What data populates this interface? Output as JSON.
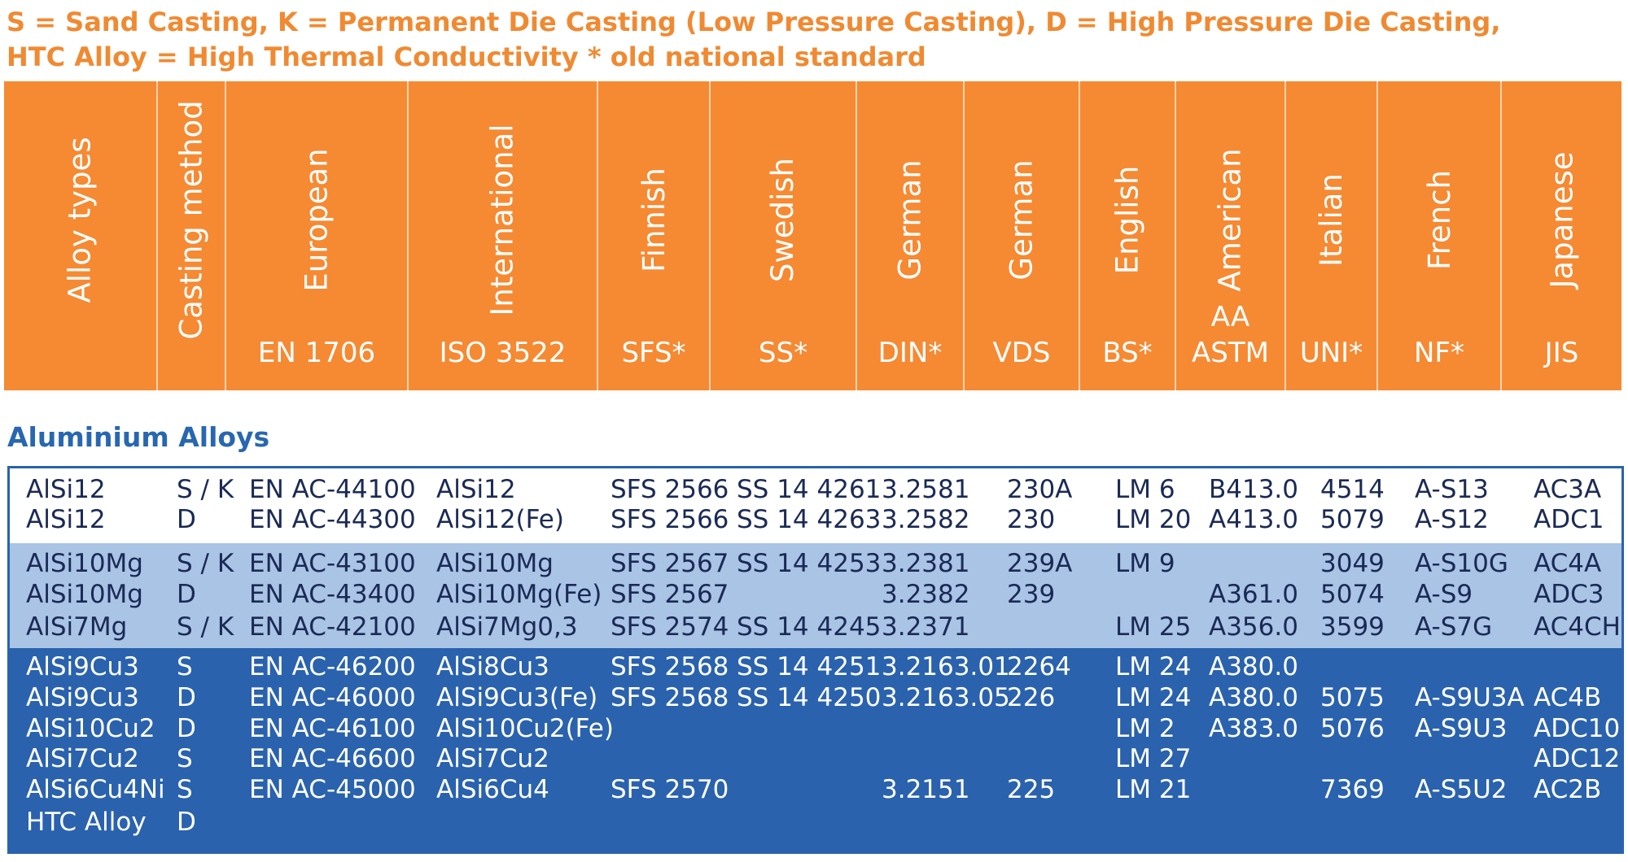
{
  "legend": {
    "line1": "S = Sand Casting, K = Permanent Die Casting (Low Pressure Casting), D = High Pressure Die Casting,",
    "line2": "HTC Alloy = High Thermal Conductivity  * old national standard"
  },
  "columns": [
    {
      "label": "Alloy types",
      "std1": "",
      "std2": ""
    },
    {
      "label": "Casting method",
      "std1": "",
      "std2": ""
    },
    {
      "label": "European",
      "std1": "",
      "std2": "EN 1706"
    },
    {
      "label": "International",
      "std1": "",
      "std2": "ISO 3522"
    },
    {
      "label": "Finnish",
      "std1": "",
      "std2": "SFS*"
    },
    {
      "label": "Swedish",
      "std1": "",
      "std2": "SS*"
    },
    {
      "label": "German",
      "std1": "",
      "std2": "DIN*"
    },
    {
      "label": "German",
      "std1": "",
      "std2": "VDS"
    },
    {
      "label": "English",
      "std1": "",
      "std2": "BS*"
    },
    {
      "label": "American",
      "std1": "AA",
      "std2": "ASTM"
    },
    {
      "label": "Italian",
      "std1": "",
      "std2": "UNI*"
    },
    {
      "label": "French",
      "std1": "",
      "std2": "NF*"
    },
    {
      "label": "Japanese",
      "std1": "",
      "std2": "JIS"
    }
  ],
  "section_title": "Aluminium Alloys",
  "groups": [
    {
      "rows": [
        [
          "AlSi12",
          "S / K",
          "EN AC-44100",
          "AlSi12",
          "SFS 2566",
          "SS 14 4261",
          "3.2581",
          "230A",
          "LM 6",
          "B413.0",
          "4514",
          "A-S13",
          "AC3A"
        ],
        [
          "AlSi12",
          "D",
          "EN AC-44300",
          "AlSi12(Fe)",
          "SFS 2566",
          "SS 14 4263",
          "3.2582",
          "230",
          "LM 20",
          "A413.0",
          "5079",
          "A-S12",
          "ADC1"
        ]
      ]
    },
    {
      "rows": [
        [
          "AlSi10Mg",
          "S / K",
          "EN AC-43100",
          "AlSi10Mg",
          "SFS 2567",
          "SS 14 4253",
          "3.2381",
          "239A",
          "LM 9",
          "",
          "3049",
          "A-S10G",
          "AC4A"
        ],
        [
          "AlSi10Mg",
          "D",
          "EN AC-43400",
          "AlSi10Mg(Fe)",
          "SFS 2567",
          "",
          "3.2382",
          "239",
          "",
          "A361.0",
          "5074",
          "A-S9",
          "ADC3"
        ],
        [
          "AlSi7Mg",
          "S / K",
          "EN AC-42100",
          "AlSi7Mg0,3",
          "SFS 2574",
          "SS 14 4245",
          "3.2371",
          "",
          "LM 25",
          "A356.0",
          "3599",
          "A-S7G",
          "AC4CH"
        ]
      ]
    },
    {
      "rows": [
        [
          "AlSi9Cu3",
          "S",
          "EN AC-46200",
          "AlSi8Cu3",
          "SFS 2568",
          "SS 14 4251",
          "3.2163.01",
          "2264",
          "LM 24",
          "A380.0",
          "",
          "",
          ""
        ],
        [
          "AlSi9Cu3",
          "D",
          "EN AC-46000",
          "AlSi9Cu3(Fe)",
          "SFS 2568",
          "SS 14 4250",
          "3.2163.05",
          "226",
          "LM 24",
          "A380.0",
          "5075",
          "A-S9U3A",
          "AC4B"
        ],
        [
          "AlSi10Cu2",
          "D",
          "EN AC-46100",
          "AlSi10Cu2(Fe)",
          "",
          "",
          "",
          "",
          "LM 2",
          "A383.0",
          "5076",
          "A-S9U3",
          "ADC10"
        ],
        [
          "AlSi7Cu2",
          "S",
          "EN AC-46600",
          "AlSi7Cu2",
          "",
          "",
          "",
          "",
          "LM 27",
          "",
          "",
          "",
          "ADC12"
        ],
        [
          "AlSi6Cu4Ni",
          "S",
          "EN AC-45000",
          "AlSi6Cu4",
          "SFS 2570",
          "",
          "3.2151",
          "225",
          "LM 21",
          "",
          "7369",
          "A-S5U2",
          "AC2B"
        ],
        [
          "HTC Alloy",
          "D",
          "",
          "",
          "",
          "",
          "",
          "",
          "",
          "",
          "",
          "",
          ""
        ]
      ]
    }
  ]
}
